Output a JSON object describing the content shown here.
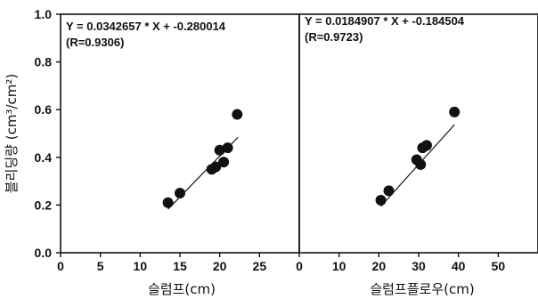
{
  "chart_data": [
    {
      "type": "scatter",
      "title": "",
      "xlabel": "슬럼프(cm)",
      "ylabel": "블리딩량 (cm³/cm²)",
      "xlim": [
        0,
        30
      ],
      "ylim": [
        0.0,
        1.0
      ],
      "xticks": [
        "0",
        "5",
        "10",
        "15",
        "20",
        "25"
      ],
      "yticks": [
        "0.0",
        "0.2",
        "0.4",
        "0.6",
        "0.8",
        "1.0"
      ],
      "equation": "Y = 0.0342657 * X + -0.280014",
      "r_label": "(R=0.9306)",
      "fit": {
        "slope": 0.0342657,
        "intercept": -0.280014,
        "x_range": [
          13.5,
          22.3
        ]
      },
      "series": [
        {
          "points": [
            {
              "x": 13.5,
              "y": 0.21
            },
            {
              "x": 15.0,
              "y": 0.25
            },
            {
              "x": 19.0,
              "y": 0.35
            },
            {
              "x": 19.5,
              "y": 0.36
            },
            {
              "x": 20.0,
              "y": 0.43
            },
            {
              "x": 20.5,
              "y": 0.38
            },
            {
              "x": 21.0,
              "y": 0.44
            },
            {
              "x": 22.2,
              "y": 0.58
            }
          ]
        }
      ]
    },
    {
      "type": "scatter",
      "title": "",
      "xlabel": "슬럼프플로우(cm)",
      "ylabel": "",
      "xlim": [
        0,
        60
      ],
      "ylim": [
        0.0,
        1.0
      ],
      "xticks": [
        "0",
        "10",
        "20",
        "30",
        "40",
        "50"
      ],
      "yticks": [],
      "equation": "Y = 0.0184907 * X + -0.184504",
      "r_label": "(R=0.9723)",
      "fit": {
        "slope": 0.0184907,
        "intercept": -0.184504,
        "x_range": [
          20.5,
          39.0
        ]
      },
      "series": [
        {
          "points": [
            {
              "x": 20.5,
              "y": 0.22
            },
            {
              "x": 22.5,
              "y": 0.26
            },
            {
              "x": 29.5,
              "y": 0.39
            },
            {
              "x": 30.5,
              "y": 0.37
            },
            {
              "x": 31.0,
              "y": 0.44
            },
            {
              "x": 32.0,
              "y": 0.45
            },
            {
              "x": 39.0,
              "y": 0.59
            }
          ]
        }
      ]
    }
  ]
}
